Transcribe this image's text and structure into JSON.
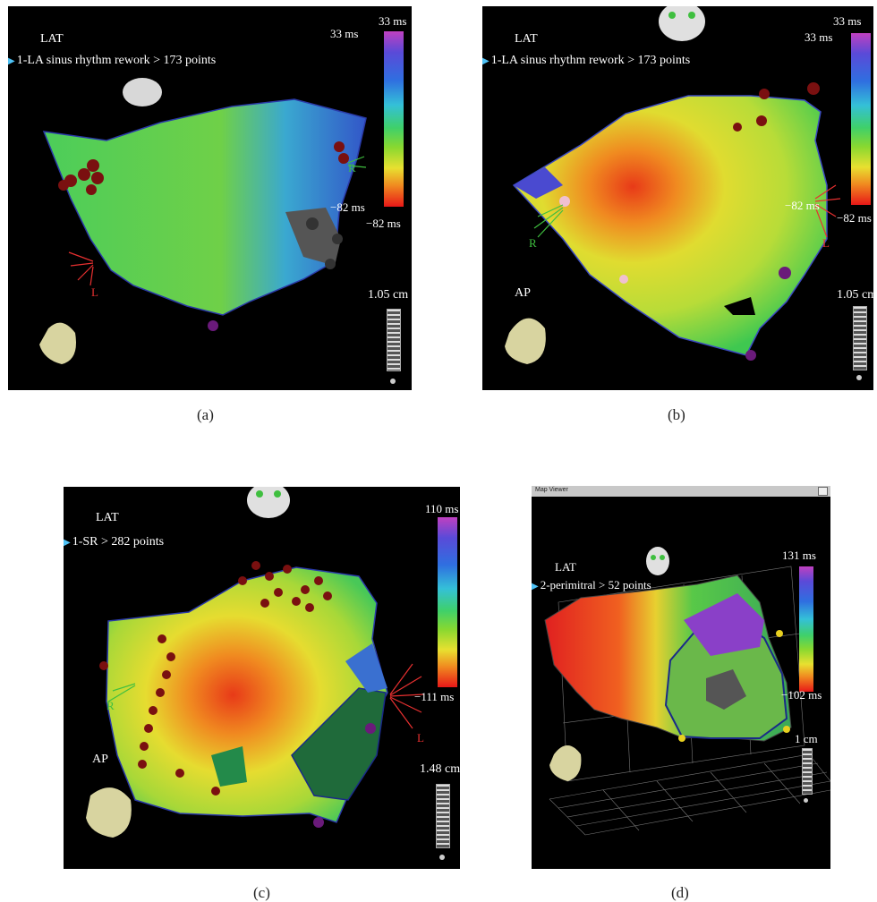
{
  "panels": {
    "a": {
      "map_label": "LAT",
      "study": "1-LA sinus rhythm rework > 173 points",
      "scale_max_top": "33 ms",
      "scale_max_arrow": "33 ms",
      "scale_min_arrow": "−82 ms",
      "scale_min_bottom": "−82 ms",
      "marker_r": "R",
      "marker_l": "L",
      "distance": "1.05 cm",
      "caption": "(a)"
    },
    "b": {
      "map_label": "LAT",
      "study": "1-LA sinus rhythm rework > 173 points",
      "scale_max_top": "33 ms",
      "scale_max_arrow": "33 ms",
      "scale_min_arrow": "−82 ms",
      "scale_min_bottom": "−82 ms",
      "marker_r": "R",
      "marker_l": "L",
      "view": "AP",
      "distance": "1.05 cm",
      "caption": "(b)"
    },
    "c": {
      "map_label": "LAT",
      "study": "1-SR > 282 points",
      "scale_max": "110 ms",
      "scale_min": "−111 ms",
      "marker_r": "R",
      "marker_l": "L",
      "view": "AP",
      "distance": "1.48 cm",
      "caption": "(c)"
    },
    "d": {
      "window_title": "Map Viewer",
      "map_label": "LAT",
      "study": "2-perimitral > 52 points",
      "scale_max": "131 ms",
      "scale_min": "−102 ms",
      "distance": "1 cm",
      "caption": "(d)"
    }
  },
  "colors": {
    "panel_bg": "#000000",
    "caption_text": "#222222",
    "marker_r": "#3fbf3f",
    "marker_l": "#e83030"
  }
}
